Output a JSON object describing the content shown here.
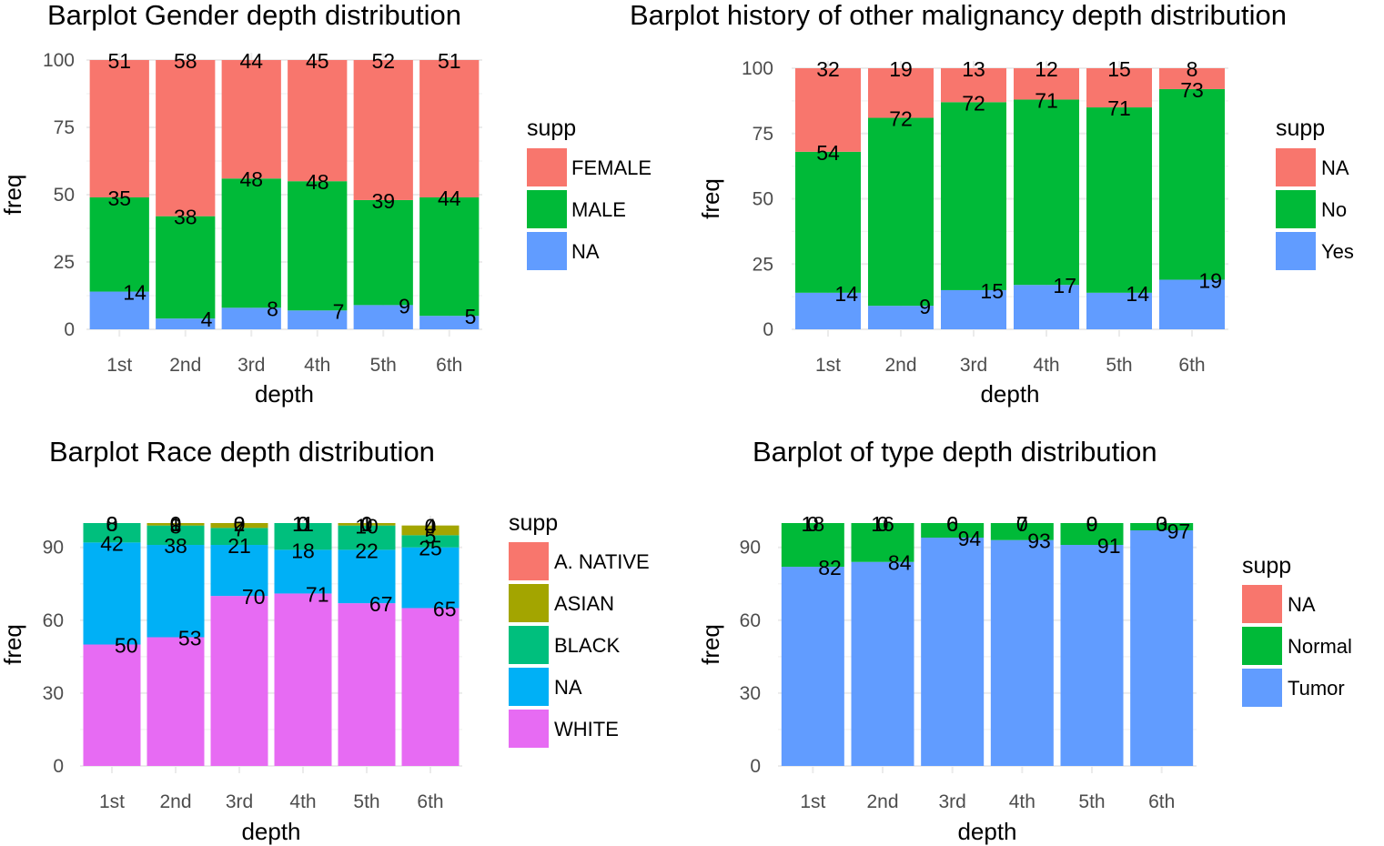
{
  "chart_data": [
    {
      "type": "bar",
      "stacked": true,
      "title": "Barplot Gender depth distribution",
      "xlabel": "depth",
      "ylabel": "freq",
      "ylim": [
        0,
        100
      ],
      "yticks": [
        0,
        25,
        50,
        75,
        100
      ],
      "categories": [
        "1st",
        "2nd",
        "3rd",
        "4th",
        "5th",
        "6th"
      ],
      "legend_title": "supp",
      "legend_position": "right",
      "series": [
        {
          "name": "FEMALE",
          "color": "#F8766D",
          "values": [
            51,
            58,
            44,
            45,
            52,
            51
          ]
        },
        {
          "name": "MALE",
          "color": "#00BA38",
          "values": [
            35,
            38,
            48,
            48,
            39,
            44
          ]
        },
        {
          "name": "NA",
          "color": "#619CFF",
          "values": [
            14,
            4,
            8,
            7,
            9,
            5
          ]
        }
      ]
    },
    {
      "type": "bar",
      "stacked": true,
      "title": "Barplot history of other malignancy depth distribution",
      "xlabel": "depth",
      "ylabel": "freq",
      "ylim": [
        0,
        100
      ],
      "yticks": [
        0,
        25,
        50,
        75,
        100
      ],
      "categories": [
        "1st",
        "2nd",
        "3rd",
        "4th",
        "5th",
        "6th"
      ],
      "legend_title": "supp",
      "legend_position": "right",
      "series": [
        {
          "name": "NA",
          "color": "#F8766D",
          "values": [
            32,
            19,
            13,
            12,
            15,
            8
          ]
        },
        {
          "name": "No",
          "color": "#00BA38",
          "values": [
            54,
            72,
            72,
            71,
            71,
            73
          ]
        },
        {
          "name": "Yes",
          "color": "#619CFF",
          "values": [
            14,
            9,
            15,
            17,
            14,
            19
          ]
        }
      ]
    },
    {
      "type": "bar",
      "stacked": true,
      "title": "Barplot Race depth distribution",
      "xlabel": "depth",
      "ylabel": "freq",
      "ylim": [
        0,
        100
      ],
      "yticks": [
        0,
        30,
        60,
        90
      ],
      "categories": [
        "1st",
        "2nd",
        "3rd",
        "4th",
        "5th",
        "6th"
      ],
      "legend_title": "supp",
      "legend_position": "right",
      "series": [
        {
          "name": "A. NATIVE",
          "color": "#F8766D",
          "values": [
            0,
            0,
            0,
            0,
            0,
            0
          ]
        },
        {
          "name": "ASIAN",
          "color": "#A3A500",
          "values": [
            0,
            1,
            2,
            0,
            1,
            4
          ]
        },
        {
          "name": "BLACK",
          "color": "#00BF7D",
          "values": [
            8,
            8,
            7,
            11,
            10,
            5
          ]
        },
        {
          "name": "NA",
          "color": "#00B0F6",
          "values": [
            42,
            38,
            21,
            18,
            22,
            25
          ]
        },
        {
          "name": "WHITE",
          "color": "#E76BF3",
          "values": [
            50,
            53,
            70,
            71,
            67,
            65
          ]
        }
      ]
    },
    {
      "type": "bar",
      "stacked": true,
      "title": "Barplot of type depth distribution",
      "xlabel": "depth",
      "ylabel": "freq",
      "ylim": [
        0,
        100
      ],
      "yticks": [
        0,
        30,
        60,
        90
      ],
      "categories": [
        "1st",
        "2nd",
        "3rd",
        "4th",
        "5th",
        "6th"
      ],
      "legend_title": "supp",
      "legend_position": "right",
      "series": [
        {
          "name": "NA",
          "color": "#F8766D",
          "values": [
            0,
            0,
            0,
            0,
            0,
            0
          ]
        },
        {
          "name": "Normal",
          "color": "#00BA38",
          "values": [
            18,
            16,
            6,
            7,
            9,
            3
          ]
        },
        {
          "name": "Tumor",
          "color": "#619CFF",
          "values": [
            82,
            84,
            94,
            93,
            91,
            97
          ]
        }
      ]
    }
  ]
}
